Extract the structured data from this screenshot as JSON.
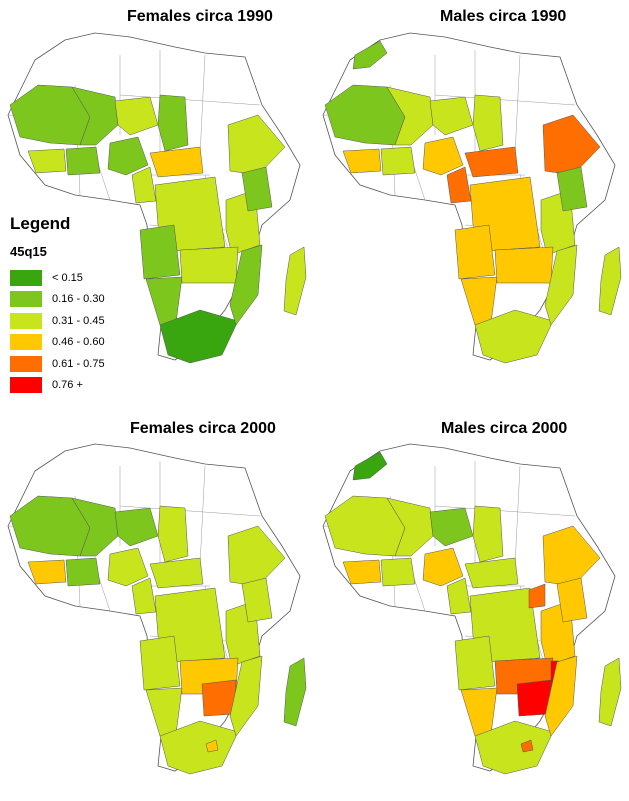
{
  "panels": [
    {
      "title": "Females circa 1990",
      "regions": {
        "nw": "c2",
        "sahel_w": "c2",
        "sahel_c": "c3",
        "sahel_e": "c2",
        "westcoast": "c3",
        "guinea": "c2",
        "nigeria": "c2",
        "cam": "c3",
        "car": "c4",
        "drc": "c3",
        "east": "c3",
        "horn": "c3",
        "kenya": "c2",
        "southcent": "c3",
        "angola": "c2",
        "namibia": "c2",
        "southafrica": "c1",
        "madagascar": "c3",
        "moz": "c2"
      }
    },
    {
      "title": "Males circa 1990",
      "regions": {
        "nw": "c2",
        "morocco": "c2",
        "sahel_w": "c3",
        "sahel_c": "c3",
        "sahel_e": "c3",
        "westcoast": "c4",
        "guinea": "c3",
        "nigeria": "c4",
        "cam": "c5",
        "car": "c5",
        "drc": "c4",
        "east": "c3",
        "horn": "c5",
        "kenya": "c2",
        "southcent": "c4",
        "angola": "c4",
        "namibia": "c4",
        "southafrica": "c3",
        "madagascar": "c3",
        "moz": "c3"
      }
    },
    {
      "title": "Females circa 2000",
      "regions": {
        "nw": "c2",
        "sahel_w": "c2",
        "sahel_c": "c2",
        "sahel_e": "c3",
        "westcoast": "c4",
        "guinea": "c2",
        "nigeria": "c3",
        "cam": "c3",
        "car": "c3",
        "drc": "c3",
        "east": "c3",
        "horn": "c3",
        "kenya": "c3",
        "southcent": "c4",
        "zim": "c5",
        "angola": "c3",
        "namibia": "c3",
        "southafrica": "c3",
        "madagascar": "c2",
        "moz": "c3",
        "lesotho": "c4"
      }
    },
    {
      "title": "Males circa 2000",
      "regions": {
        "nw": "c3",
        "morocco": "c1",
        "sahel_w": "c3",
        "sahel_c": "c2",
        "sahel_e": "c3",
        "westcoast": "c4",
        "guinea": "c3",
        "nigeria": "c4",
        "cam": "c3",
        "car": "c3",
        "drc": "c3",
        "uganda": "c5",
        "east": "c4",
        "horn": "c4",
        "kenya": "c4",
        "southcent": "c5",
        "zim": "c6",
        "malawi": "c6",
        "angola": "c3",
        "namibia": "c4",
        "southafrica": "c3",
        "madagascar": "c3",
        "moz": "c4",
        "lesotho": "c5"
      }
    }
  ],
  "legend": {
    "title": "Legend",
    "subtitle": "45q15",
    "items": [
      {
        "label": "< 0.15",
        "color": "#3aa60f"
      },
      {
        "label": "0.16 - 0.30",
        "color": "#7cc61e"
      },
      {
        "label": "0.31 - 0.45",
        "color": "#c8e41c"
      },
      {
        "label": "0.46 - 0.60",
        "color": "#ffc800"
      },
      {
        "label": "0.61 - 0.75",
        "color": "#ff6e00"
      },
      {
        "label": "0.76 +",
        "color": "#ff0000"
      }
    ]
  },
  "classes": {
    "c1": "#3aa60f",
    "c2": "#7cc61e",
    "c3": "#c8e41c",
    "c4": "#ffc800",
    "c5": "#ff6e00",
    "c6": "#ff0000"
  }
}
